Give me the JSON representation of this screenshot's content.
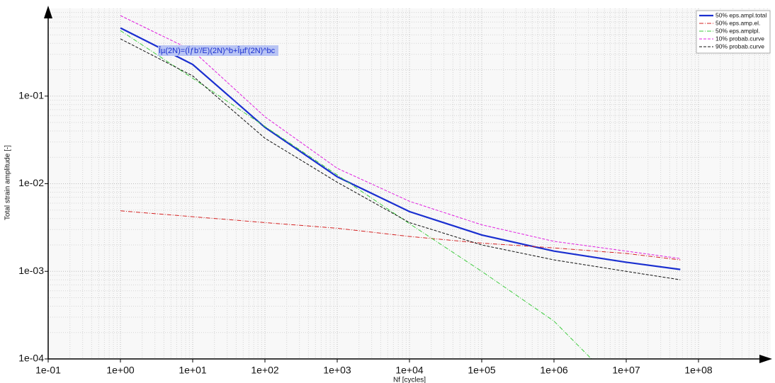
{
  "chart_data": {
    "type": "line",
    "x_label": "Nf [cycles]",
    "y_label": "Total strain amplitude [-]",
    "annotation": "Îµ(2N)=(Ïƒb'/E)(2N)^b+Îµf'(2N)^bc",
    "log_x": true,
    "log_y": true,
    "grid": true,
    "legend": "top-right",
    "xlim": [
      0.1,
      1000000000
    ],
    "ylim": [
      0.0001,
      1
    ],
    "xticks": [
      {
        "value": 0.1,
        "label": "1e-01"
      },
      {
        "value": 1,
        "label": "1e+00"
      },
      {
        "value": 10,
        "label": "1e+01"
      },
      {
        "value": 100,
        "label": "1e+02"
      },
      {
        "value": 1000,
        "label": "1e+03"
      },
      {
        "value": 10000,
        "label": "1e+04"
      },
      {
        "value": 100000,
        "label": "1e+05"
      },
      {
        "value": 1000000,
        "label": "1e+06"
      },
      {
        "value": 10000000,
        "label": "1e+07"
      },
      {
        "value": 100000000,
        "label": "1e+08"
      }
    ],
    "yticks": [
      {
        "value": 0.0001,
        "label": "1e-04"
      },
      {
        "value": 0.001,
        "label": "1e-03"
      },
      {
        "value": 0.01,
        "label": "1e-02"
      },
      {
        "value": 0.1,
        "label": "1e-01"
      }
    ],
    "series": [
      {
        "name": "50% eps.ampl.total",
        "color": "#1a2fd0",
        "style": "solid",
        "width": 2.2,
        "x": [
          1,
          10,
          100,
          1000,
          10000,
          100000,
          1000000,
          10000000,
          56000000
        ],
        "values": [
          0.6,
          0.23,
          0.044,
          0.012,
          0.0048,
          0.0026,
          0.0017,
          0.00127,
          0.00105
        ]
      },
      {
        "name": "50% eps.amp.el.",
        "color": "#d42020",
        "style": "dashdot",
        "width": 1,
        "x": [
          1,
          10,
          100,
          1000,
          10000,
          100000,
          1000000,
          10000000,
          56000000
        ],
        "values": [
          0.0049,
          0.0042,
          0.0036,
          0.0031,
          0.0025,
          0.0021,
          0.00185,
          0.0016,
          0.00135
        ]
      },
      {
        "name": "50% eps.amplpl.",
        "color": "#3ccc3c",
        "style": "dashdot",
        "width": 1,
        "x": [
          1,
          10,
          100,
          1000,
          10000,
          100000,
          1000000,
          3300000
        ],
        "values": [
          0.56,
          0.16,
          0.045,
          0.0126,
          0.0035,
          0.001,
          0.00027,
          0.0001
        ]
      },
      {
        "name": "10% probab.curve",
        "color": "#e020e0",
        "style": "dashed",
        "width": 1,
        "x": [
          1,
          10,
          100,
          1000,
          10000,
          100000,
          1000000,
          10000000,
          56000000
        ],
        "values": [
          0.83,
          0.33,
          0.058,
          0.015,
          0.0063,
          0.0034,
          0.0022,
          0.0017,
          0.0014
        ]
      },
      {
        "name": "90% probab.curve",
        "color": "#111111",
        "style": "dashed",
        "width": 1,
        "x": [
          1,
          10,
          100,
          1000,
          10000,
          100000,
          1000000,
          10000000,
          56000000
        ],
        "values": [
          0.45,
          0.17,
          0.033,
          0.0104,
          0.0036,
          0.002,
          0.00135,
          0.001,
          0.0008
        ]
      }
    ]
  }
}
